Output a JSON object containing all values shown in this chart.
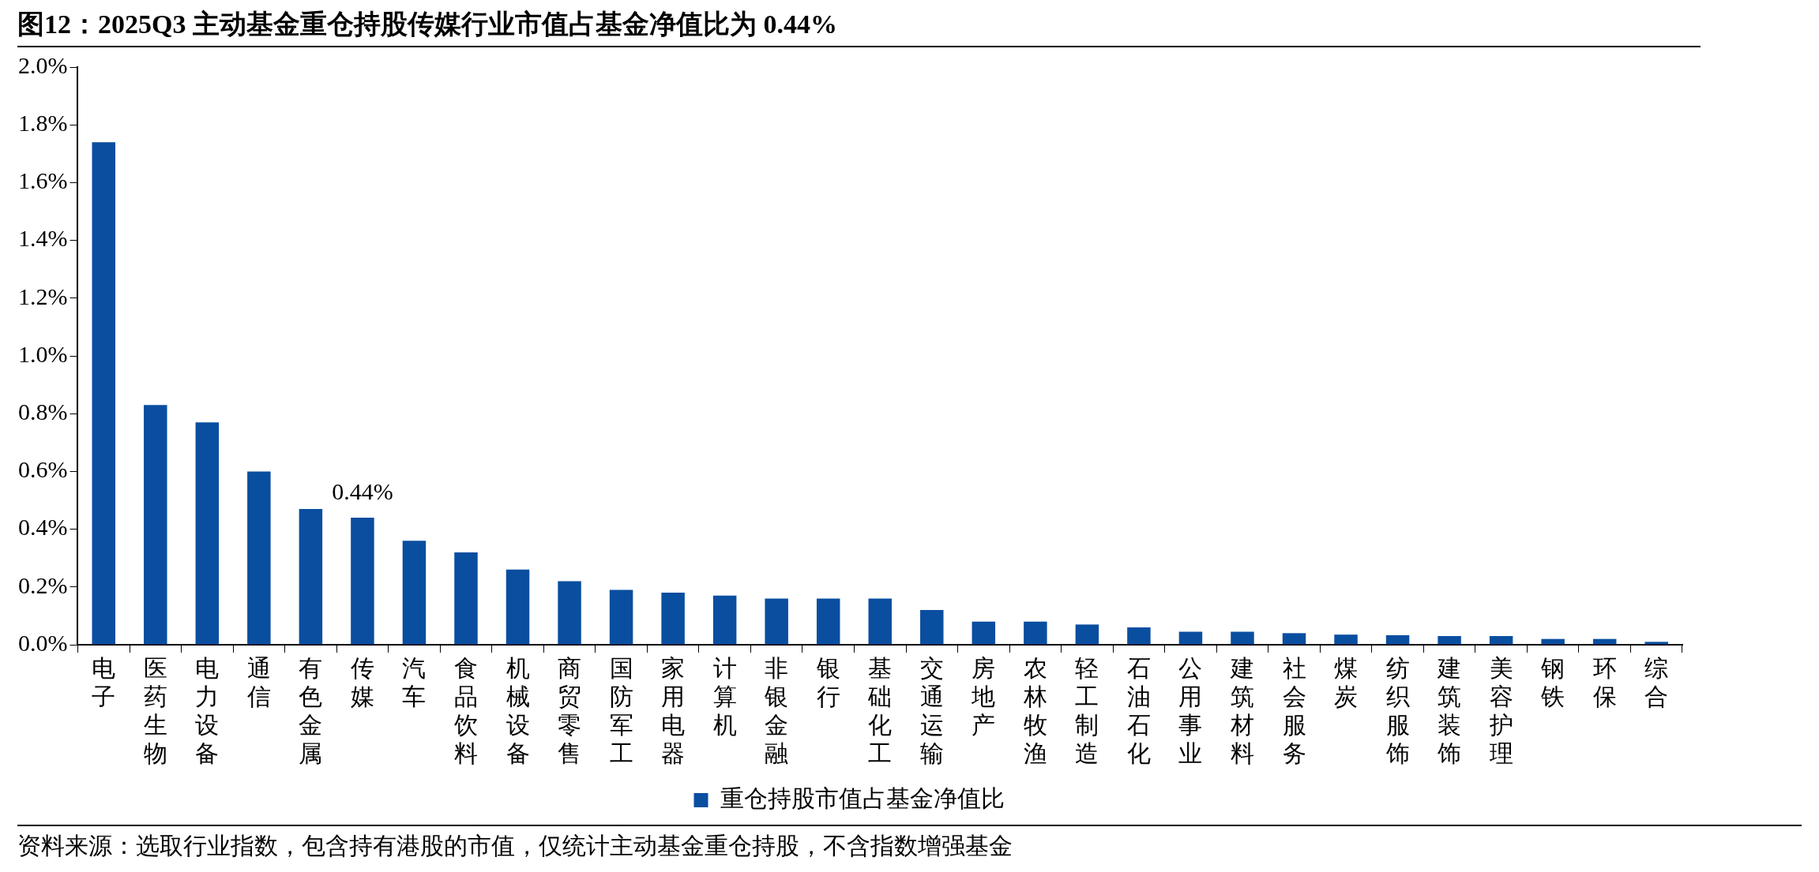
{
  "chart_data": {
    "type": "bar",
    "title": "图12：2025Q3 主动基金重仓持股传媒行业市值占基金净值比为 0.44%",
    "categories": [
      "电子",
      "医药生物",
      "电力设备",
      "通信",
      "有色金属",
      "传媒",
      "汽车",
      "食品饮料",
      "机械设备",
      "商贸零售",
      "国防军工",
      "家用电器",
      "计算机",
      "非银金融",
      "银行",
      "基础化工",
      "交通运输",
      "房地产",
      "农林牧渔",
      "轻工制造",
      "石油石化",
      "公用事业",
      "建筑材料",
      "社会服务",
      "煤炭",
      "纺织服饰",
      "建筑装饰",
      "美容护理",
      "钢铁",
      "环保",
      "综合"
    ],
    "series": [
      {
        "name": "重仓持股市值占基金净值比",
        "color": "#0a4ea0",
        "values": [
          1.74,
          0.83,
          0.77,
          0.6,
          0.47,
          0.44,
          0.36,
          0.32,
          0.26,
          0.22,
          0.19,
          0.18,
          0.17,
          0.16,
          0.16,
          0.16,
          0.12,
          0.08,
          0.08,
          0.07,
          0.06,
          0.045,
          0.045,
          0.04,
          0.035,
          0.033,
          0.03,
          0.03,
          0.02,
          0.02,
          0.01
        ],
        "value_labels": [
          null,
          null,
          null,
          null,
          null,
          "0.44%",
          null,
          null,
          null,
          null,
          null,
          null,
          null,
          null,
          null,
          null,
          null,
          null,
          null,
          null,
          null,
          null,
          null,
          null,
          null,
          null,
          null,
          null,
          null,
          null,
          null
        ]
      }
    ],
    "ylim": [
      0,
      2.0
    ],
    "yticks": [
      {
        "value": 0,
        "label": "0.0%"
      },
      {
        "value": 0.2,
        "label": "0.2%"
      },
      {
        "value": 0.4,
        "label": "0.4%"
      },
      {
        "value": 0.6,
        "label": "0.6%"
      },
      {
        "value": 0.8,
        "label": "0.8%"
      },
      {
        "value": 1.0,
        "label": "1.0%"
      },
      {
        "value": 1.2,
        "label": "1.2%"
      },
      {
        "value": 1.4,
        "label": "1.4%"
      },
      {
        "value": 1.6,
        "label": "1.6%"
      },
      {
        "value": 1.8,
        "label": "1.8%"
      },
      {
        "value": 2.0,
        "label": "2.0%"
      }
    ],
    "grid": false,
    "legend": "bottom",
    "annotations": [
      "资料来源：选取行业指数，包含持有港股的市值，仅统计主动基金重仓持股，不含指数增强基金"
    ]
  }
}
